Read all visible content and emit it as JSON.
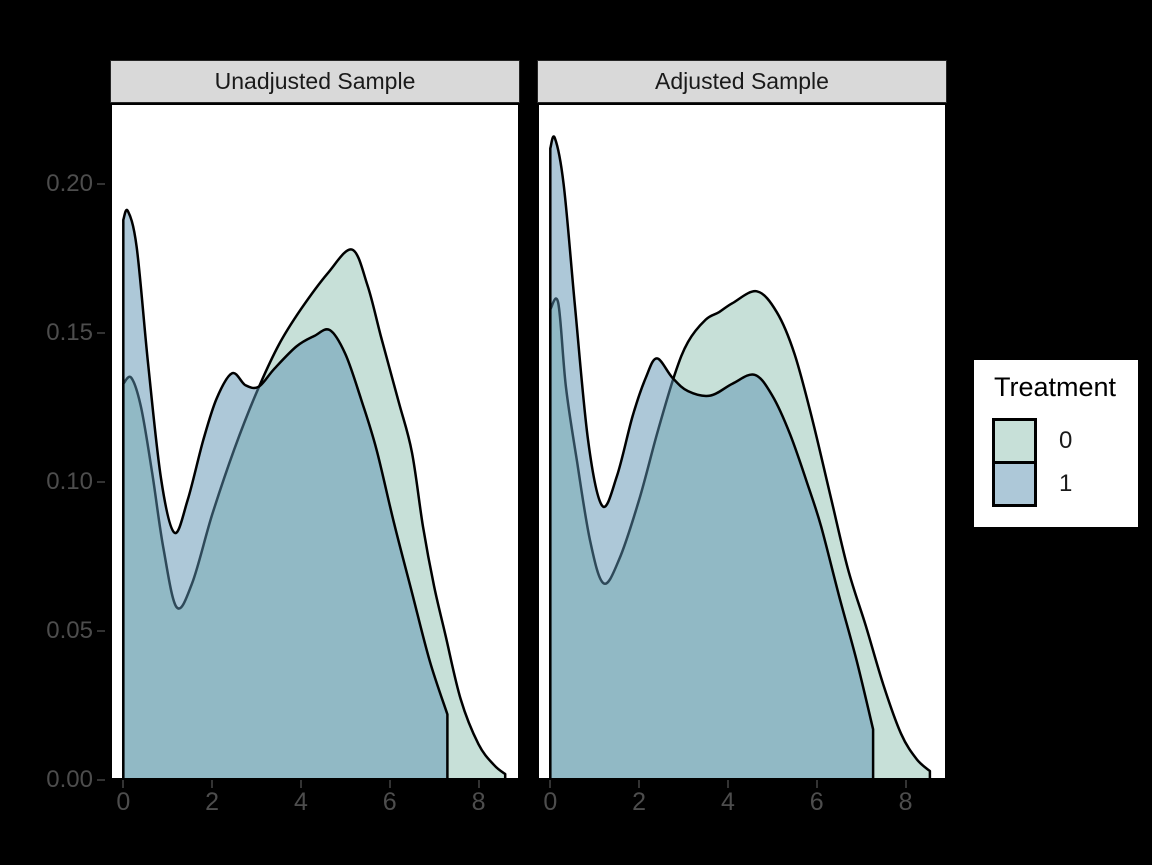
{
  "page": {
    "background": "#000000",
    "panel_background": "#ffffff"
  },
  "chart_data": {
    "type": "area",
    "subtype": "overlapping-density",
    "title": "",
    "xlabel": "",
    "ylabel": "",
    "grid": "off",
    "legend_position": "right",
    "xlim": [
      -0.3,
      8.934
    ],
    "ylim": [
      0,
      0.2272
    ],
    "x_ticks": [
      {
        "label": "0",
        "value": 0
      },
      {
        "label": "2",
        "value": 2
      },
      {
        "label": "4",
        "value": 4
      },
      {
        "label": "6",
        "value": 6
      },
      {
        "label": "8",
        "value": 8
      }
    ],
    "y_ticks": [
      {
        "label": "0.00",
        "value": 0.0
      },
      {
        "label": "0.05",
        "value": 0.05
      },
      {
        "label": "0.10",
        "value": 0.1
      },
      {
        "label": "0.15",
        "value": 0.15
      },
      {
        "label": "0.20",
        "value": 0.2
      }
    ],
    "colors": {
      "treatment0_fill": "#8fc1b1",
      "treatment1_fill": "#5b91b1",
      "fill_alpha": 0.5,
      "stroke": "#000000",
      "strip_background": "#d9d9d9",
      "axis_text": "#4d4d4d",
      "tick_mark": "#333333"
    },
    "legend": {
      "title": "Treatment",
      "entries": [
        {
          "label": "0",
          "color": "treatment0"
        },
        {
          "label": "1",
          "color": "treatment1"
        }
      ]
    },
    "facets": [
      {
        "title": "Unadjusted Sample",
        "series": [
          {
            "name": "0",
            "color": "treatment0",
            "points": [
              [
                0,
                0.133
              ],
              [
                0.18,
                0.135
              ],
              [
                0.4,
                0.125
              ],
              [
                0.65,
                0.103
              ],
              [
                0.9,
                0.078
              ],
              [
                1.2,
                0.058
              ],
              [
                1.55,
                0.066
              ],
              [
                2.0,
                0.089
              ],
              [
                2.5,
                0.111
              ],
              [
                3.0,
                0.13
              ],
              [
                3.5,
                0.146
              ],
              [
                4.0,
                0.158
              ],
              [
                4.6,
                0.17
              ],
              [
                5.15,
                0.178
              ],
              [
                5.5,
                0.166
              ],
              [
                5.8,
                0.149
              ],
              [
                6.2,
                0.127
              ],
              [
                6.5,
                0.11
              ],
              [
                6.75,
                0.085
              ],
              [
                7.0,
                0.065
              ],
              [
                7.25,
                0.049
              ],
              [
                7.6,
                0.027
              ],
              [
                8.0,
                0.012
              ],
              [
                8.35,
                0.005
              ],
              [
                8.6,
                0.002
              ]
            ]
          },
          {
            "name": "1",
            "color": "treatment1",
            "points": [
              [
                0,
                0.188
              ],
              [
                0.1,
                0.191
              ],
              [
                0.3,
                0.179
              ],
              [
                0.55,
                0.141
              ],
              [
                0.85,
                0.101
              ],
              [
                1.15,
                0.083
              ],
              [
                1.45,
                0.094
              ],
              [
                1.8,
                0.114
              ],
              [
                2.1,
                0.128
              ],
              [
                2.45,
                0.1365
              ],
              [
                2.75,
                0.1325
              ],
              [
                3.05,
                0.132
              ],
              [
                3.4,
                0.138
              ],
              [
                3.9,
                0.1455
              ],
              [
                4.3,
                0.149
              ],
              [
                4.65,
                0.151
              ],
              [
                5.0,
                0.143
              ],
              [
                5.35,
                0.128
              ],
              [
                5.7,
                0.111
              ],
              [
                6.1,
                0.086
              ],
              [
                6.5,
                0.063
              ],
              [
                6.9,
                0.04
              ],
              [
                7.3,
                0.022
              ]
            ]
          }
        ]
      },
      {
        "title": "Adjusted Sample",
        "series": [
          {
            "name": "0",
            "color": "treatment0",
            "points": [
              [
                0,
                0.158
              ],
              [
                0.18,
                0.16
              ],
              [
                0.35,
                0.132
              ],
              [
                0.6,
                0.107
              ],
              [
                0.9,
                0.08
              ],
              [
                1.2,
                0.066
              ],
              [
                1.55,
                0.074
              ],
              [
                2.0,
                0.094
              ],
              [
                2.4,
                0.116
              ],
              [
                2.8,
                0.136
              ],
              [
                3.1,
                0.147
              ],
              [
                3.5,
                0.1545
              ],
              [
                3.8,
                0.157
              ],
              [
                4.1,
                0.16
              ],
              [
                4.65,
                0.164
              ],
              [
                5.1,
                0.157
              ],
              [
                5.5,
                0.143
              ],
              [
                5.9,
                0.121
              ],
              [
                6.3,
                0.096
              ],
              [
                6.7,
                0.071
              ],
              [
                7.1,
                0.052
              ],
              [
                7.5,
                0.032
              ],
              [
                7.9,
                0.0155
              ],
              [
                8.25,
                0.007
              ],
              [
                8.55,
                0.003
              ]
            ]
          },
          {
            "name": "1",
            "color": "treatment1",
            "points": [
              [
                0,
                0.212
              ],
              [
                0.1,
                0.2155
              ],
              [
                0.3,
                0.2
              ],
              [
                0.55,
                0.16
              ],
              [
                0.85,
                0.114
              ],
              [
                1.17,
                0.092
              ],
              [
                1.5,
                0.102
              ],
              [
                1.85,
                0.122
              ],
              [
                2.15,
                0.135
              ],
              [
                2.4,
                0.1415
              ],
              [
                2.75,
                0.135
              ],
              [
                3.1,
                0.1305
              ],
              [
                3.6,
                0.129
              ],
              [
                4.1,
                0.133
              ],
              [
                4.6,
                0.136
              ],
              [
                5.0,
                0.129
              ],
              [
                5.4,
                0.116
              ],
              [
                5.8,
                0.099
              ],
              [
                6.1,
                0.085
              ],
              [
                6.5,
                0.062
              ],
              [
                6.9,
                0.04
              ],
              [
                7.27,
                0.017
              ]
            ]
          }
        ]
      }
    ]
  }
}
